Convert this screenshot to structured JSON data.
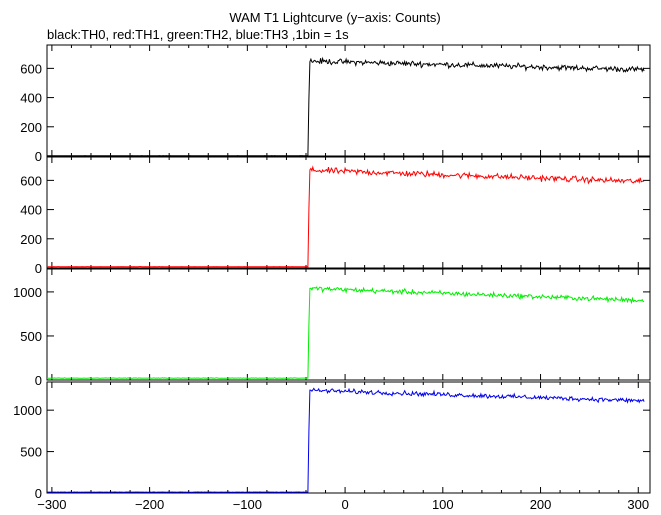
{
  "title": "WAM T1 Lightcurve (y−axis: Counts)",
  "subtitle": "black:TH0, red:TH1, green:TH2, blue:TH3 ,1bin = 1s",
  "chart_data": {
    "type": "line",
    "x_ticks": [
      -300,
      -200,
      -100,
      0,
      100,
      200,
      300
    ],
    "xlim": [
      -305,
      312
    ],
    "onset_x": -37,
    "grid": false,
    "panels": [
      {
        "name": "TH0",
        "color": "#000000",
        "ylim": [
          0,
          760
        ],
        "y_ticks": [
          0,
          200,
          400,
          600
        ],
        "pre_level": 2,
        "peak_level": 650,
        "end_level": 590,
        "noise": 28
      },
      {
        "name": "TH1",
        "color": "#ff0000",
        "ylim": [
          0,
          760
        ],
        "y_ticks": [
          0,
          200,
          400,
          600
        ],
        "pre_level": 8,
        "peak_level": 670,
        "end_level": 590,
        "noise": 30
      },
      {
        "name": "TH2",
        "color": "#00ee00",
        "ylim": [
          0,
          1260
        ],
        "y_ticks": [
          0,
          500,
          1000
        ],
        "pre_level": 20,
        "peak_level": 1040,
        "end_level": 900,
        "noise": 40
      },
      {
        "name": "TH3",
        "color": "#0000ee",
        "ylim": [
          0,
          1340
        ],
        "y_ticks": [
          0,
          500,
          1000
        ],
        "pre_level": 10,
        "peak_level": 1240,
        "end_level": 1110,
        "noise": 40
      }
    ]
  }
}
